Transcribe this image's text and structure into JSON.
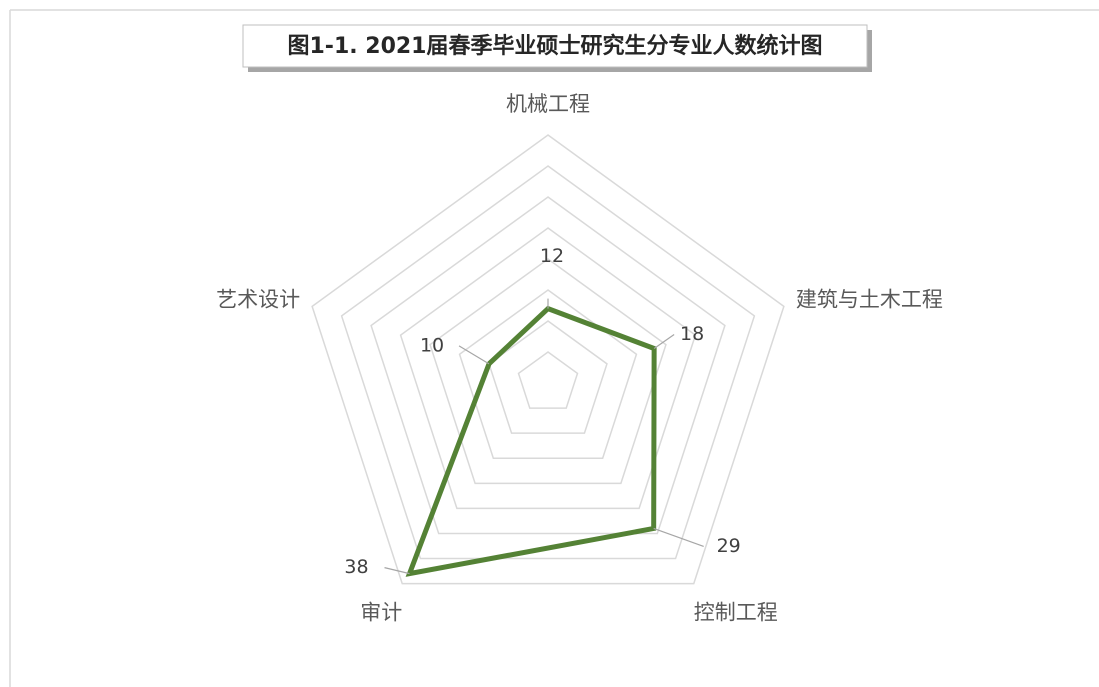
{
  "chart_data": {
    "type": "radar",
    "title": "图1-1. 2021届春季毕业硕士研究生分专业人数统计图",
    "categories": [
      "机械工程",
      "建筑与土木工程",
      "控制工程",
      "审计",
      "艺术设计"
    ],
    "values": [
      12,
      18,
      29,
      38,
      10
    ],
    "color": "#548235",
    "rlim": [
      0,
      40
    ],
    "rticks": [
      5,
      10,
      15,
      20,
      25,
      30,
      35,
      40
    ],
    "grid": true
  }
}
